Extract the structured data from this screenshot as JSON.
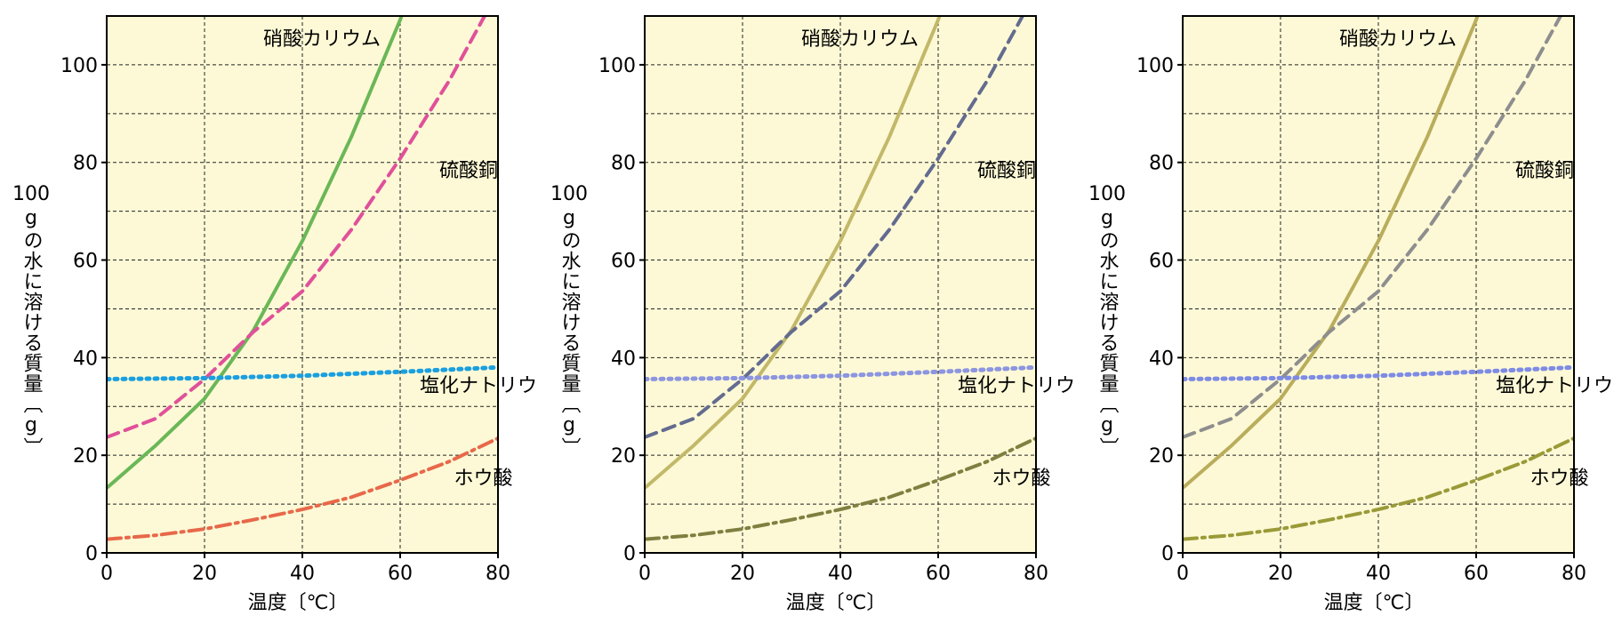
{
  "chart_data": [
    {
      "type": "line",
      "xlabel": "温度〔℃〕",
      "ylabel_top": "100 g",
      "ylabel_body": "の水に溶ける質量",
      "ylabel_unit": "〔g〕",
      "xlim": [
        0,
        80
      ],
      "ylim": [
        0,
        110
      ],
      "xticks": [
        0,
        20,
        40,
        60,
        80
      ],
      "yticks": [
        0,
        20,
        40,
        60,
        80,
        100
      ],
      "grid": true,
      "background": "#fdf9d6",
      "series": [
        {
          "name": "硝酸カリウム",
          "style": "solid",
          "color": "#6ab757",
          "label_pos": [
            32,
            104
          ],
          "x": [
            0,
            10,
            20,
            30,
            40,
            50,
            60,
            62
          ],
          "y": [
            13.3,
            22,
            31.6,
            45.6,
            63.9,
            85.2,
            109.2,
            115
          ]
        },
        {
          "name": "硫酸銅",
          "style": "dash",
          "color": "#e0509a",
          "label_pos": [
            68,
            77
          ],
          "x": [
            0,
            10,
            20,
            30,
            40,
            50,
            60,
            70,
            80
          ],
          "y": [
            23.7,
            27.5,
            35.6,
            45.3,
            53.6,
            66.2,
            80.8,
            96.7,
            115
          ]
        },
        {
          "name": "塩化ナトリウム",
          "style": "dot",
          "color": "#1a9fe0",
          "label_pos": [
            64,
            33
          ],
          "x": [
            0,
            20,
            40,
            60,
            80
          ],
          "y": [
            35.6,
            35.8,
            36.3,
            37.1,
            38.0
          ]
        },
        {
          "name": "ホウ酸",
          "style": "dashdot",
          "color": "#e8684a",
          "label_pos": [
            71,
            14
          ],
          "x": [
            0,
            10,
            20,
            30,
            40,
            50,
            60,
            70,
            80
          ],
          "y": [
            2.8,
            3.6,
            4.9,
            6.8,
            8.9,
            11.4,
            14.9,
            18.7,
            23.5
          ]
        }
      ]
    },
    {
      "type": "line",
      "xlabel": "温度〔℃〕",
      "ylabel_top": "100 g",
      "ylabel_body": "の水に溶ける質量",
      "ylabel_unit": "〔g〕",
      "xlim": [
        0,
        80
      ],
      "ylim": [
        0,
        110
      ],
      "xticks": [
        0,
        20,
        40,
        60,
        80
      ],
      "yticks": [
        0,
        20,
        40,
        60,
        80,
        100
      ],
      "grid": true,
      "background": "#fdf9d6",
      "series": [
        {
          "name": "硝酸カリウム",
          "style": "solid",
          "color": "#c2b869",
          "label_pos": [
            32,
            104
          ],
          "x": [
            0,
            10,
            20,
            30,
            40,
            50,
            60,
            62
          ],
          "y": [
            13.3,
            22,
            31.6,
            45.6,
            63.9,
            85.2,
            109.2,
            115
          ]
        },
        {
          "name": "硫酸銅",
          "style": "dash",
          "color": "#636b8f",
          "label_pos": [
            68,
            77
          ],
          "x": [
            0,
            10,
            20,
            30,
            40,
            50,
            60,
            70,
            80
          ],
          "y": [
            23.7,
            27.5,
            35.6,
            45.3,
            53.6,
            66.2,
            80.8,
            96.7,
            115
          ]
        },
        {
          "name": "塩化ナトリウム",
          "style": "dot",
          "color": "#8c95e0",
          "label_pos": [
            64,
            33
          ],
          "x": [
            0,
            20,
            40,
            60,
            80
          ],
          "y": [
            35.6,
            35.8,
            36.3,
            37.1,
            38.0
          ]
        },
        {
          "name": "ホウ酸",
          "style": "dashdot",
          "color": "#7f7f40",
          "label_pos": [
            71,
            14
          ],
          "x": [
            0,
            10,
            20,
            30,
            40,
            50,
            60,
            70,
            80
          ],
          "y": [
            2.8,
            3.6,
            4.9,
            6.8,
            8.9,
            11.4,
            14.9,
            18.7,
            23.5
          ]
        }
      ]
    },
    {
      "type": "line",
      "xlabel": "温度〔℃〕",
      "ylabel_top": "100 g",
      "ylabel_body": "の水に溶ける質量",
      "ylabel_unit": "〔g〕",
      "xlim": [
        0,
        80
      ],
      "ylim": [
        0,
        110
      ],
      "xticks": [
        0,
        20,
        40,
        60,
        80
      ],
      "yticks": [
        0,
        20,
        40,
        60,
        80,
        100
      ],
      "grid": true,
      "background": "#fdf9d6",
      "series": [
        {
          "name": "硝酸カリウム",
          "style": "solid",
          "color": "#b9ad5c",
          "label_pos": [
            32,
            104
          ],
          "x": [
            0,
            10,
            20,
            30,
            40,
            50,
            60,
            62
          ],
          "y": [
            13.3,
            22,
            31.6,
            45.6,
            63.9,
            85.2,
            109.2,
            115
          ]
        },
        {
          "name": "硫酸銅",
          "style": "dash",
          "color": "#8e8e8e",
          "label_pos": [
            68,
            77
          ],
          "x": [
            0,
            10,
            20,
            30,
            40,
            50,
            60,
            70,
            80
          ],
          "y": [
            23.7,
            27.5,
            35.6,
            45.3,
            53.6,
            66.2,
            80.8,
            96.7,
            115
          ]
        },
        {
          "name": "塩化ナトリウム",
          "style": "dot",
          "color": "#7d8be6",
          "label_pos": [
            64,
            33
          ],
          "x": [
            0,
            20,
            40,
            60,
            80
          ],
          "y": [
            35.6,
            35.8,
            36.3,
            37.1,
            38.0
          ]
        },
        {
          "name": "ホウ酸",
          "style": "dashdot",
          "color": "#9a9a38",
          "label_pos": [
            71,
            14
          ],
          "x": [
            0,
            10,
            20,
            30,
            40,
            50,
            60,
            70,
            80
          ],
          "y": [
            2.8,
            3.6,
            4.9,
            6.8,
            8.9,
            11.4,
            14.9,
            18.7,
            23.5
          ]
        }
      ]
    }
  ]
}
